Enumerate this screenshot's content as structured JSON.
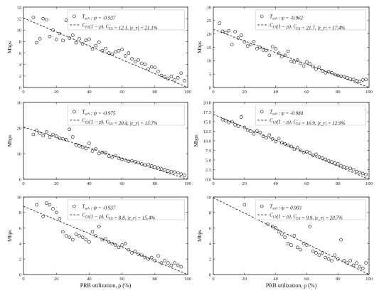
{
  "figure": {
    "xlabel": "PRB utilization, ρ (%)"
  },
  "chart_data": [
    {
      "type": "scatter",
      "ylabel": "Mbps",
      "xlim": [
        0,
        100
      ],
      "ylim": [
        0,
        14
      ],
      "xticks": [
        0,
        20,
        40,
        60,
        80,
        100
      ],
      "yticks": [
        0,
        2,
        4,
        6,
        8,
        10,
        12,
        14
      ],
      "legend": {
        "placement": "top-right",
        "scatter_label": "T_sch : ψ = -0.937",
        "fit_label": "C_LS(1 − ρ), C_LS = 12.1, |ε_r| = 21.1%"
      },
      "fit": {
        "C_LS": 12.1
      },
      "points": [
        [
          6,
          12.2
        ],
        [
          8,
          7.8
        ],
        [
          10,
          8.5
        ],
        [
          12,
          12
        ],
        [
          14,
          11.8
        ],
        [
          16,
          8.9
        ],
        [
          18,
          10
        ],
        [
          20,
          8.4
        ],
        [
          22,
          9.4
        ],
        [
          24,
          8.2
        ],
        [
          26,
          11.7
        ],
        [
          28,
          8.6
        ],
        [
          30,
          9.1
        ],
        [
          32,
          7.8
        ],
        [
          34,
          8.5
        ],
        [
          36,
          7.6
        ],
        [
          38,
          8.2
        ],
        [
          40,
          8.4
        ],
        [
          42,
          6.7
        ],
        [
          44,
          7.3
        ],
        [
          46,
          7.9
        ],
        [
          48,
          6.4
        ],
        [
          50,
          6.8
        ],
        [
          52,
          6
        ],
        [
          54,
          5.8
        ],
        [
          56,
          6.2
        ],
        [
          58,
          6.4
        ],
        [
          60,
          6.6
        ],
        [
          62,
          5.5
        ],
        [
          64,
          6
        ],
        [
          66,
          5
        ],
        [
          68,
          4.5
        ],
        [
          70,
          4.8
        ],
        [
          72,
          4.2
        ],
        [
          74,
          4
        ],
        [
          76,
          3.2
        ],
        [
          78,
          3.6
        ],
        [
          80,
          3.5
        ],
        [
          82,
          2.8
        ],
        [
          84,
          2.1
        ],
        [
          86,
          1.8
        ],
        [
          88,
          1.5
        ],
        [
          90,
          1.9
        ],
        [
          92,
          1.3
        ],
        [
          94,
          1.7
        ],
        [
          96,
          2.5
        ],
        [
          98,
          1.2
        ]
      ]
    },
    {
      "type": "scatter",
      "ylabel": "Mbps",
      "xlim": [
        0,
        100
      ],
      "ylim": [
        0,
        30
      ],
      "xticks": [
        0,
        20,
        40,
        60,
        80,
        100
      ],
      "yticks": [
        0,
        5,
        10,
        15,
        20,
        25,
        30
      ],
      "legend": {
        "placement": "top-right",
        "scatter_label": "T_sch : ψ = -0.962",
        "fit_label": "C_LS(1 − ρ), C_LS = 21.7, |ε_r| = 17.4%"
      },
      "fit": {
        "C_LS": 21.7
      },
      "points": [
        [
          4,
          24
        ],
        [
          6,
          21
        ],
        [
          8,
          20.5
        ],
        [
          10,
          21.2
        ],
        [
          12,
          16
        ],
        [
          14,
          20.8
        ],
        [
          16,
          18.5
        ],
        [
          18,
          19.5
        ],
        [
          20,
          17
        ],
        [
          22,
          15.5
        ],
        [
          24,
          16
        ],
        [
          26,
          17.2
        ],
        [
          28,
          14.5
        ],
        [
          30,
          15
        ],
        [
          32,
          14
        ],
        [
          34,
          13.8
        ],
        [
          36,
          12
        ],
        [
          38,
          15.2
        ],
        [
          40,
          14.5
        ],
        [
          42,
          12.8
        ],
        [
          44,
          11.5
        ],
        [
          46,
          12
        ],
        [
          48,
          13.5
        ],
        [
          50,
          9.8
        ],
        [
          52,
          9.5
        ],
        [
          54,
          10.2
        ],
        [
          56,
          9
        ],
        [
          58,
          8
        ],
        [
          60,
          9.5
        ],
        [
          62,
          8.8
        ],
        [
          64,
          7.8
        ],
        [
          66,
          6.8
        ],
        [
          68,
          7.5
        ],
        [
          70,
          6.2
        ],
        [
          72,
          5.5
        ],
        [
          74,
          5.8
        ],
        [
          76,
          5.5
        ],
        [
          78,
          4.8
        ],
        [
          80,
          4.5
        ],
        [
          82,
          4.2
        ],
        [
          84,
          4
        ],
        [
          86,
          3.6
        ],
        [
          88,
          3.2
        ],
        [
          90,
          3
        ],
        [
          92,
          2.5
        ],
        [
          94,
          2.2
        ],
        [
          96,
          2.8
        ],
        [
          98,
          3
        ]
      ]
    },
    {
      "type": "scatter",
      "ylabel": "Mbps",
      "xlim": [
        0,
        100
      ],
      "ylim": [
        0,
        30
      ],
      "xticks": [
        0,
        20,
        40,
        60,
        80,
        100
      ],
      "yticks": [
        0,
        10,
        20,
        30
      ],
      "legend": {
        "placement": "top-right",
        "scatter_label": "T_sch : ψ = -0.975",
        "fit_label": "C_LS(1 − ρ), C_LS = 20.4, |ε_r| = 13.7%"
      },
      "fit": {
        "C_LS": 20.4
      },
      "points": [
        [
          6,
          17.5
        ],
        [
          8,
          19
        ],
        [
          10,
          18
        ],
        [
          12,
          17
        ],
        [
          14,
          18.5
        ],
        [
          16,
          16.5
        ],
        [
          18,
          17.5
        ],
        [
          20,
          16.8
        ],
        [
          22,
          16
        ],
        [
          24,
          15.8
        ],
        [
          26,
          15.4
        ],
        [
          28,
          19.5
        ],
        [
          30,
          16.5
        ],
        [
          32,
          13.5
        ],
        [
          34,
          13
        ],
        [
          36,
          12.5
        ],
        [
          38,
          12
        ],
        [
          40,
          14
        ],
        [
          42,
          11
        ],
        [
          44,
          11.8
        ],
        [
          46,
          10
        ],
        [
          48,
          10.5
        ],
        [
          50,
          10.2
        ],
        [
          52,
          9
        ],
        [
          54,
          8.5
        ],
        [
          56,
          9.2
        ],
        [
          58,
          8.2
        ],
        [
          60,
          7.8
        ],
        [
          62,
          7.5
        ],
        [
          64,
          7
        ],
        [
          66,
          7.2
        ],
        [
          68,
          6.8
        ],
        [
          70,
          6.5
        ],
        [
          72,
          6
        ],
        [
          74,
          5.5
        ],
        [
          76,
          5.8
        ],
        [
          78,
          5.2
        ],
        [
          80,
          4.8
        ],
        [
          82,
          4.5
        ],
        [
          84,
          4
        ],
        [
          86,
          3.8
        ],
        [
          88,
          3.2
        ],
        [
          90,
          3
        ],
        [
          92,
          2.8
        ],
        [
          94,
          2.5
        ],
        [
          96,
          2
        ],
        [
          98,
          1.5
        ]
      ]
    },
    {
      "type": "scatter",
      "ylabel": "Mbps",
      "xlim": [
        0,
        100
      ],
      "ylim": [
        0,
        20
      ],
      "xticks": [
        0,
        20,
        40,
        60,
        80,
        100
      ],
      "yticks": [
        0,
        2.5,
        5,
        7.5,
        10,
        12.5,
        15,
        17.5,
        20
      ],
      "ytick_labels": [
        "0.0",
        "2.5",
        "5.0",
        "7.5",
        "10.0",
        "12.5",
        "15.0",
        "17.5",
        "20.0"
      ],
      "legend": {
        "placement": "top-right",
        "scatter_label": "T_sch : ψ = -0.984",
        "fit_label": "C_LS(1 − ρ), C_LS = 16.9, |ε_r| = 12.9%"
      },
      "fit": {
        "C_LS": 16.9
      },
      "points": [
        [
          6,
          15.5
        ],
        [
          8,
          15.2
        ],
        [
          10,
          14.8
        ],
        [
          12,
          15
        ],
        [
          14,
          14.2
        ],
        [
          16,
          13.8
        ],
        [
          18,
          16.2
        ],
        [
          20,
          13.5
        ],
        [
          22,
          12.8
        ],
        [
          24,
          12.5
        ],
        [
          26,
          11.8
        ],
        [
          28,
          12.6
        ],
        [
          30,
          12.2
        ],
        [
          32,
          11.2
        ],
        [
          34,
          10.8
        ],
        [
          36,
          11.5
        ],
        [
          38,
          10.5
        ],
        [
          40,
          9.8
        ],
        [
          42,
          10.6
        ],
        [
          44,
          9.5
        ],
        [
          46,
          9.2
        ],
        [
          48,
          8.8
        ],
        [
          50,
          8.5
        ],
        [
          52,
          7.8
        ],
        [
          54,
          8.2
        ],
        [
          56,
          7.5
        ],
        [
          58,
          7
        ],
        [
          60,
          7.2
        ],
        [
          62,
          6.8
        ],
        [
          64,
          6.2
        ],
        [
          66,
          6.5
        ],
        [
          68,
          5.8
        ],
        [
          70,
          5.5
        ],
        [
          72,
          5.2
        ],
        [
          74,
          4.8
        ],
        [
          76,
          4.5
        ],
        [
          78,
          4.2
        ],
        [
          80,
          4
        ],
        [
          82,
          3.5
        ],
        [
          84,
          3.2
        ],
        [
          86,
          3
        ],
        [
          88,
          2.8
        ],
        [
          90,
          2.5
        ],
        [
          92,
          2
        ],
        [
          94,
          1.8
        ],
        [
          96,
          1.5
        ],
        [
          98,
          1.2
        ]
      ]
    },
    {
      "type": "scatter",
      "ylabel": "Mbps",
      "xlim": [
        0,
        100
      ],
      "ylim": [
        0,
        10
      ],
      "xticks": [
        0,
        20,
        40,
        60,
        80,
        100
      ],
      "yticks": [
        0,
        2,
        4,
        6,
        8,
        10
      ],
      "legend": {
        "placement": "top-right",
        "scatter_label": "T_sch : ψ = -0.937",
        "fit_label": "C_LS(1 − ρ), C_LS = 8.8, |ε_r| = 15.4%"
      },
      "fit": {
        "C_LS": 8.8
      },
      "points": [
        [
          8,
          9
        ],
        [
          12,
          7.5
        ],
        [
          14,
          9.2
        ],
        [
          16,
          9
        ],
        [
          18,
          8.5
        ],
        [
          20,
          8
        ],
        [
          22,
          7.2
        ],
        [
          24,
          5.5
        ],
        [
          26,
          5
        ],
        [
          28,
          4.8
        ],
        [
          30,
          4.5
        ],
        [
          32,
          5.2
        ],
        [
          34,
          5
        ],
        [
          36,
          4.8
        ],
        [
          38,
          4.5
        ],
        [
          40,
          4.2
        ],
        [
          42,
          5.5
        ],
        [
          44,
          5
        ],
        [
          46,
          6.2
        ],
        [
          48,
          4.5
        ],
        [
          50,
          4.6
        ],
        [
          52,
          4.2
        ],
        [
          54,
          4
        ],
        [
          56,
          3.8
        ],
        [
          58,
          3.5
        ],
        [
          60,
          3.8
        ],
        [
          62,
          4
        ],
        [
          64,
          3.2
        ],
        [
          66,
          2.8
        ],
        [
          68,
          3
        ],
        [
          70,
          2.6
        ],
        [
          72,
          2.5
        ],
        [
          74,
          2.2
        ],
        [
          76,
          2
        ],
        [
          78,
          2.2
        ],
        [
          80,
          1.8
        ],
        [
          82,
          2.4
        ],
        [
          84,
          1.5
        ],
        [
          86,
          1.8
        ],
        [
          88,
          1.5
        ],
        [
          90,
          1.2
        ],
        [
          92,
          1.5
        ],
        [
          94,
          1.2
        ],
        [
          96,
          1
        ]
      ]
    },
    {
      "type": "scatter",
      "ylabel": "Mbps",
      "xlim": [
        0,
        100
      ],
      "ylim": [
        0,
        10
      ],
      "xticks": [
        0,
        20,
        40,
        60,
        80,
        100
      ],
      "yticks": [
        0,
        2,
        4,
        6,
        8,
        10
      ],
      "legend": {
        "placement": "top-right",
        "scatter_label": "T_sch : ψ = 0.903",
        "fit_label": "C_LS(1 − ρ), C_LS = 9.9, |ε_r| = 20.7%"
      },
      "fit": {
        "C_LS": 9.9
      },
      "points": [
        [
          20,
          9
        ],
        [
          30,
          7.5
        ],
        [
          35,
          6.5
        ],
        [
          38,
          6.2
        ],
        [
          40,
          6
        ],
        [
          42,
          5.5
        ],
        [
          44,
          5.2
        ],
        [
          46,
          4.8
        ],
        [
          48,
          4
        ],
        [
          50,
          3.8
        ],
        [
          52,
          5
        ],
        [
          54,
          3.5
        ],
        [
          56,
          3.2
        ],
        [
          58,
          4
        ],
        [
          60,
          3.8
        ],
        [
          62,
          6.2
        ],
        [
          64,
          3
        ],
        [
          66,
          2.8
        ],
        [
          68,
          2.5
        ],
        [
          70,
          2.8
        ],
        [
          72,
          2.2
        ],
        [
          74,
          2
        ],
        [
          76,
          1.8
        ],
        [
          78,
          2.5
        ],
        [
          80,
          2
        ],
        [
          82,
          4.5
        ],
        [
          84,
          1.8
        ],
        [
          86,
          1.5
        ],
        [
          88,
          1.8
        ],
        [
          90,
          1.2
        ],
        [
          92,
          1.5
        ],
        [
          94,
          1
        ],
        [
          96,
          0.8
        ],
        [
          98,
          1.5
        ]
      ]
    }
  ]
}
